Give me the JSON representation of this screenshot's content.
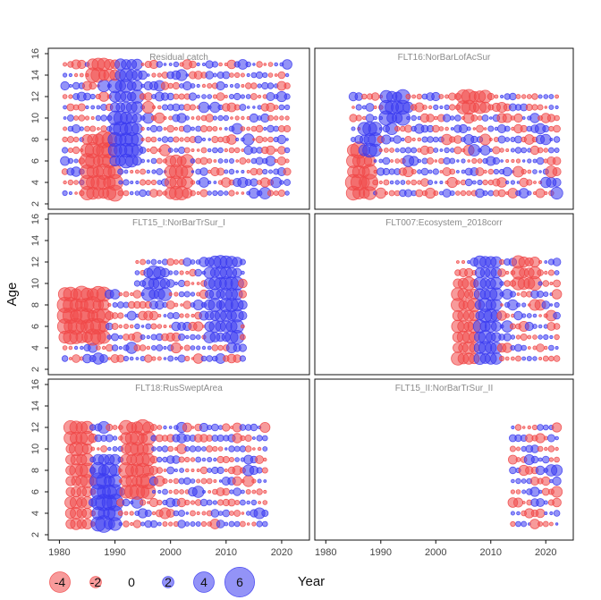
{
  "chart_data": {
    "type": "scatter",
    "xlabel": "Year",
    "ylabel": "Age",
    "xlim": [
      1978,
      2025
    ],
    "ylim": [
      1.5,
      16.5
    ],
    "x_ticks": [
      1980,
      1990,
      2000,
      2010,
      2020
    ],
    "y_ticks": [
      2,
      4,
      6,
      8,
      10,
      12,
      14,
      16
    ],
    "colors": {
      "positive": "#3b3bf0",
      "negative": "#f04848"
    },
    "legend": {
      "position": "bottom",
      "entries": [
        {
          "label": "-4",
          "value": -4
        },
        {
          "label": "-2",
          "value": -2
        },
        {
          "label": "0",
          "value": 0
        },
        {
          "label": "2",
          "value": 2
        },
        {
          "label": "4",
          "value": 4
        },
        {
          "label": "6",
          "value": 6
        }
      ]
    },
    "panels": [
      {
        "title": "Residual catch",
        "years": [
          1981,
          2021
        ],
        "ages": [
          3,
          15
        ],
        "seed": 11,
        "hot": [
          {
            "y0": 1985,
            "y1": 1990,
            "a0": 3,
            "a1": 8,
            "sign": -1,
            "mag": 3
          },
          {
            "y0": 1990,
            "y1": 1994,
            "a0": 6,
            "a1": 15,
            "sign": 1,
            "mag": 2.5
          },
          {
            "y0": 1986,
            "y1": 1990,
            "a0": 14,
            "a1": 15,
            "sign": -1,
            "mag": 2.5
          },
          {
            "y0": 2000,
            "y1": 2003,
            "a0": 3,
            "a1": 6,
            "sign": -1,
            "mag": 2.5
          }
        ]
      },
      {
        "title": "FLT16:NorBarLofAcSur",
        "years": [
          1985,
          2022
        ],
        "ages": [
          3,
          12
        ],
        "seed": 23,
        "hot": [
          {
            "y0": 1985,
            "y1": 1988,
            "a0": 3,
            "a1": 7,
            "sign": -1,
            "mag": 3
          },
          {
            "y0": 1987,
            "y1": 1989,
            "a0": 7,
            "a1": 9,
            "sign": 1,
            "mag": 2.5
          },
          {
            "y0": 1991,
            "y1": 1994,
            "a0": 10,
            "a1": 12,
            "sign": 1,
            "mag": 2.5
          },
          {
            "y0": 2005,
            "y1": 2009,
            "a0": 11,
            "a1": 12,
            "sign": -1,
            "mag": 2.5
          }
        ]
      },
      {
        "title": "FLT15_I:NorBarTrSur_I",
        "years": [
          1981,
          2013
        ],
        "ages": [
          3,
          12
        ],
        "blocks": [
          {
            "year_max": 1993,
            "age_max": 9
          }
        ],
        "seed": 37,
        "hot": [
          {
            "y0": 1981,
            "y1": 1988,
            "a0": 5,
            "a1": 9,
            "sign": -1,
            "mag": 3
          },
          {
            "y0": 1996,
            "y1": 1999,
            "a0": 9,
            "a1": 11,
            "sign": 1,
            "mag": 2.5
          },
          {
            "y0": 2007,
            "y1": 2012,
            "a0": 5,
            "a1": 12,
            "sign": 1,
            "mag": 2.3
          }
        ]
      },
      {
        "title": "FLT007:Ecosystem_2018corr",
        "years": [
          2004,
          2022
        ],
        "ages": [
          3,
          12
        ],
        "seed": 41,
        "hot": [
          {
            "y0": 2004,
            "y1": 2007,
            "a0": 3,
            "a1": 10,
            "sign": -1,
            "mag": 2.3
          },
          {
            "y0": 2008,
            "y1": 2011,
            "a0": 3,
            "a1": 12,
            "sign": 1,
            "mag": 2.3
          },
          {
            "y0": 2015,
            "y1": 2018,
            "a0": 10,
            "a1": 12,
            "sign": -1,
            "mag": 2.3
          }
        ]
      },
      {
        "title": "FLT18:RusSweptArea",
        "years": [
          1982,
          2017
        ],
        "ages": [
          3,
          12
        ],
        "seed": 53,
        "hot": [
          {
            "y0": 1982,
            "y1": 1985,
            "a0": 3,
            "a1": 12,
            "sign": -1,
            "mag": 2.5
          },
          {
            "y0": 1987,
            "y1": 1990,
            "a0": 3,
            "a1": 9,
            "sign": 1,
            "mag": 3
          },
          {
            "y0": 1992,
            "y1": 1996,
            "a0": 6,
            "a1": 12,
            "sign": -1,
            "mag": 2.7
          }
        ]
      },
      {
        "title": "FLT15_II:NorBarTrSur_II",
        "years": [
          2014,
          2022
        ],
        "ages": [
          3,
          12
        ],
        "seed": 67,
        "hot": []
      }
    ]
  }
}
